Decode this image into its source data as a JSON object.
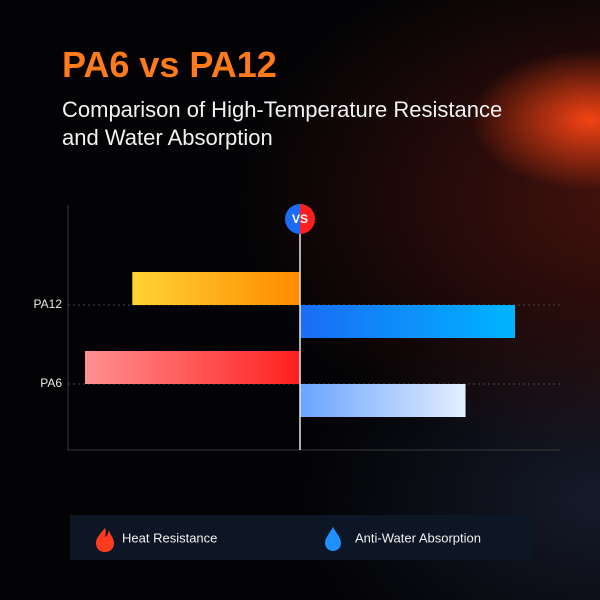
{
  "chart_data": {
    "type": "bar",
    "title": "PA6 vs PA12",
    "subtitle": "Comparison of High-Temperature Resistance and Water Absorption",
    "annotation": "VS",
    "categories": [
      "PA12",
      "PA6"
    ],
    "series": [
      {
        "name": "Heat Resistance",
        "values": [
          78,
          100
        ],
        "colors": [
          [
            "#ffd433",
            "#ff8a00"
          ],
          [
            "#ff9090",
            "#ff1f1f"
          ]
        ]
      },
      {
        "name": "Anti-Water Absorption",
        "values": [
          100,
          77
        ],
        "colors": [
          [
            "#1a6cf5",
            "#00b4ff"
          ],
          [
            "#6aa4ff",
            "#e4eeff"
          ]
        ]
      }
    ]
  }
}
